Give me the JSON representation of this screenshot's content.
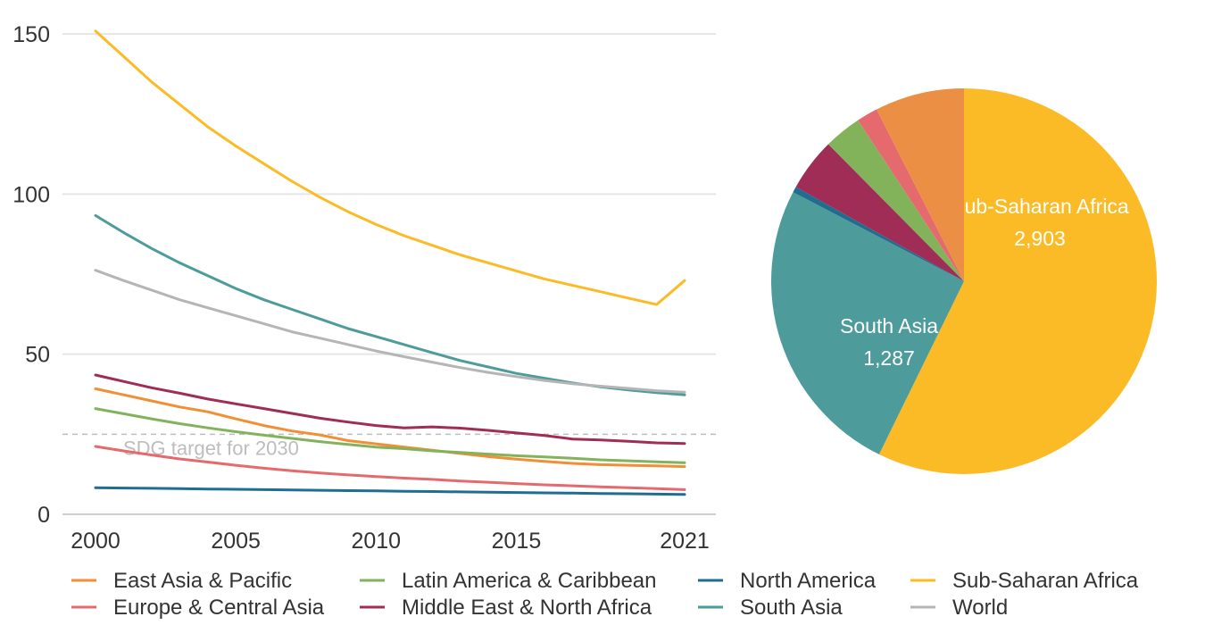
{
  "chart_data": [
    {
      "type": "line",
      "title": "",
      "xlabel": "",
      "ylabel": "",
      "ylim": [
        0,
        150
      ],
      "y_ticks": [
        "0",
        "50",
        "100",
        "150"
      ],
      "y_tick_values": [
        0,
        50,
        100,
        150
      ],
      "x_ticks": [
        "2000",
        "2005",
        "2010",
        "2015",
        "2021"
      ],
      "x_tick_values": [
        2000,
        2005,
        2010,
        2015,
        2021
      ],
      "x": [
        2000,
        2001,
        2002,
        2003,
        2004,
        2005,
        2006,
        2007,
        2008,
        2009,
        2010,
        2011,
        2012,
        2013,
        2014,
        2015,
        2016,
        2017,
        2018,
        2019,
        2020,
        2021
      ],
      "reference_line": {
        "value": 25,
        "label": "SDG target for 2030",
        "color": "#bdbdbd"
      },
      "series": [
        {
          "name": "Sub-Saharan Africa",
          "color": "#FBBB27",
          "values": [
            150.9,
            143.0,
            135.0,
            128.0,
            121.0,
            115.0,
            109.5,
            104.0,
            99.0,
            94.5,
            90.5,
            87.0,
            84.0,
            81.0,
            78.5,
            76.0,
            73.5,
            71.5,
            69.5,
            67.5,
            65.5,
            73.0
          ]
        },
        {
          "name": "South Asia",
          "color": "#4E9B9B",
          "values": [
            93.3,
            88.0,
            83.0,
            78.5,
            74.5,
            70.5,
            67.0,
            64.0,
            61.0,
            58.0,
            55.5,
            53.0,
            50.5,
            48.0,
            46.0,
            44.0,
            42.5,
            41.0,
            39.8,
            38.8,
            38.0,
            37.3
          ]
        },
        {
          "name": "World",
          "color": "#B5B5B5",
          "values": [
            76.2,
            73.0,
            70.0,
            67.0,
            64.5,
            62.0,
            59.5,
            57.0,
            55.0,
            53.0,
            51.0,
            49.2,
            47.5,
            45.8,
            44.3,
            43.0,
            41.8,
            40.8,
            40.0,
            39.3,
            38.6,
            38.1
          ]
        },
        {
          "name": "Middle East & North Africa",
          "color": "#A02D55",
          "values": [
            43.5,
            41.5,
            39.5,
            37.8,
            36.0,
            34.5,
            33.0,
            31.5,
            30.0,
            28.8,
            27.7,
            27.0,
            27.3,
            26.9,
            26.2,
            25.4,
            24.6,
            23.5,
            23.2,
            22.8,
            22.3,
            22.1
          ]
        },
        {
          "name": "East Asia & Pacific",
          "color": "#F28E35",
          "values": [
            39.2,
            37.3,
            35.4,
            33.5,
            32.0,
            29.8,
            27.7,
            26.0,
            24.8,
            23.0,
            22.0,
            21.0,
            20.0,
            19.0,
            18.0,
            17.2,
            16.5,
            15.9,
            15.5,
            15.3,
            15.1,
            14.9
          ]
        },
        {
          "name": "Latin America & Caribbean",
          "color": "#82B35A",
          "values": [
            33.0,
            31.4,
            29.8,
            28.3,
            27.0,
            25.8,
            24.7,
            23.7,
            22.7,
            21.8,
            21.0,
            20.5,
            19.8,
            19.3,
            18.8,
            18.3,
            17.9,
            17.5,
            17.0,
            16.7,
            16.4,
            16.1
          ]
        },
        {
          "name": "Europe & Central Asia",
          "color": "#E56A6E",
          "values": [
            21.2,
            19.8,
            18.5,
            17.3,
            16.3,
            15.3,
            14.4,
            13.6,
            12.9,
            12.3,
            11.8,
            11.3,
            10.9,
            10.4,
            10.0,
            9.6,
            9.2,
            8.9,
            8.6,
            8.3,
            8.0,
            7.7
          ]
        },
        {
          "name": "North America",
          "color": "#1F6D8F",
          "values": [
            8.3,
            8.2,
            8.1,
            8.0,
            7.9,
            7.8,
            7.7,
            7.6,
            7.5,
            7.4,
            7.3,
            7.2,
            7.1,
            7.0,
            6.9,
            6.8,
            6.7,
            6.6,
            6.5,
            6.4,
            6.3,
            6.2
          ]
        }
      ]
    },
    {
      "type": "pie",
      "title": "",
      "slices": [
        {
          "name": "Sub-Saharan Africa",
          "value": 2903,
          "label": "Sub-Saharan Africa",
          "value_label": "2,903",
          "color": "#FBBB27",
          "show_label": true
        },
        {
          "name": "South Asia",
          "value": 1287,
          "label": "South Asia",
          "value_label": "1,287",
          "color": "#4E9B9B",
          "show_label": true
        },
        {
          "name": "North America",
          "value": 25,
          "color": "#1F6D8F",
          "show_label": false
        },
        {
          "name": "Middle East & North Africa",
          "value": 225,
          "color": "#A02D55",
          "show_label": false
        },
        {
          "name": "Latin America & Caribbean",
          "value": 160,
          "color": "#82B35A",
          "show_label": false
        },
        {
          "name": "Europe & Central Asia",
          "value": 90,
          "color": "#E56A6E",
          "show_label": false
        },
        {
          "name": "East Asia & Pacific",
          "value": 380,
          "color": "#EA8F43",
          "show_label": false
        }
      ]
    }
  ],
  "legend": {
    "placement": "bottom",
    "items": [
      {
        "label": "East Asia & Pacific",
        "color": "#F28E35"
      },
      {
        "label": "Europe & Central Asia",
        "color": "#E56A6E"
      },
      {
        "label": "Latin America & Caribbean",
        "color": "#82B35A"
      },
      {
        "label": "Middle East & North Africa",
        "color": "#A02D55"
      },
      {
        "label": "North America",
        "color": "#1F6D8F"
      },
      {
        "label": "South Asia",
        "color": "#4E9B9B"
      },
      {
        "label": "Sub-Saharan Africa",
        "color": "#FBBB27"
      },
      {
        "label": "World",
        "color": "#B5B5B5"
      }
    ]
  }
}
